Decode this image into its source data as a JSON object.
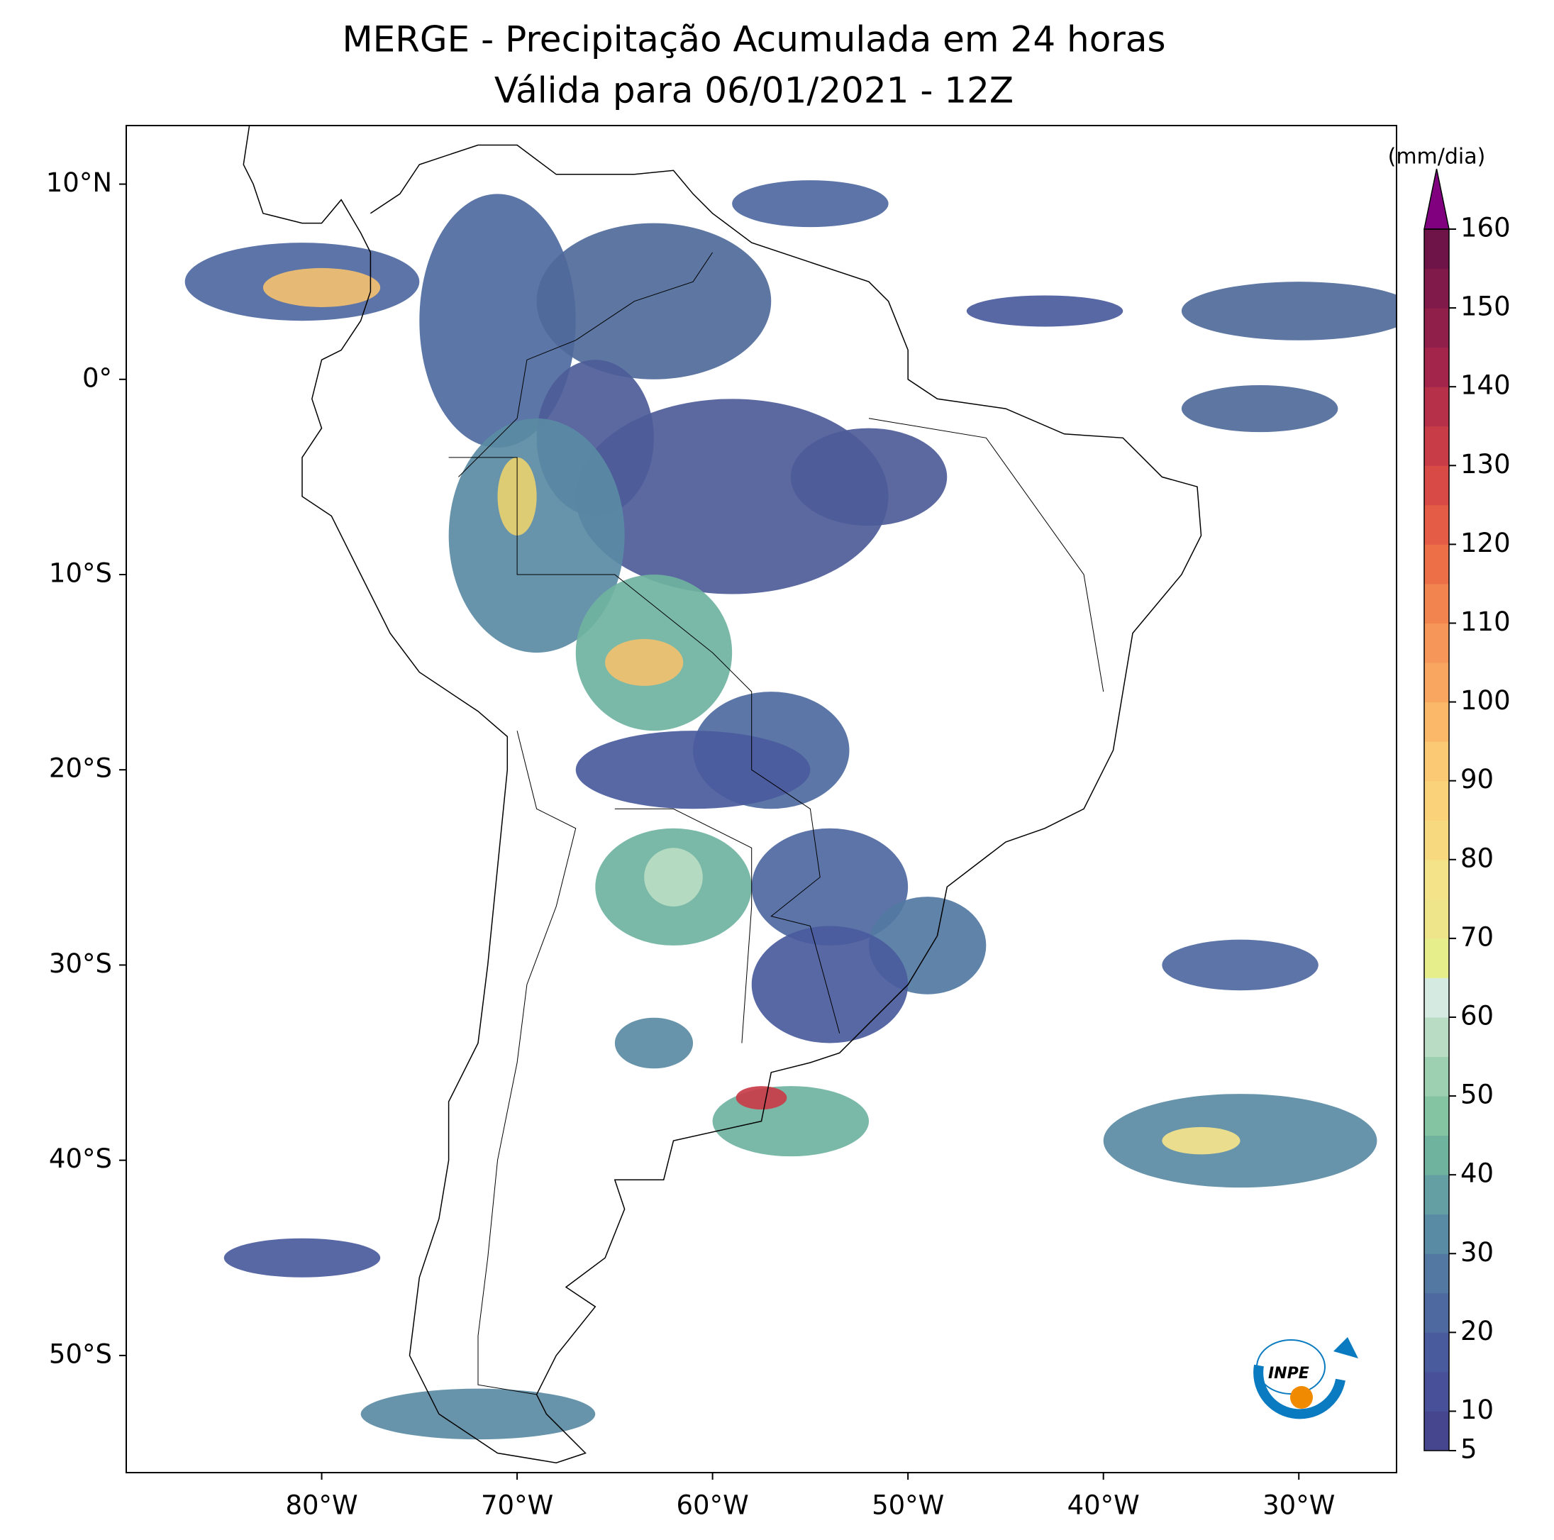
{
  "title": "MERGE - Precipitação Acumulada em 24 horas",
  "subtitle": "Válida para 06/01/2021 - 12Z",
  "map": {
    "xlim": [
      -90,
      -25
    ],
    "ylim": [
      -56,
      13
    ],
    "xticks": [
      {
        "value": -80,
        "label": "80°W"
      },
      {
        "value": -70,
        "label": "70°W"
      },
      {
        "value": -60,
        "label": "60°W"
      },
      {
        "value": -50,
        "label": "50°W"
      },
      {
        "value": -40,
        "label": "40°W"
      },
      {
        "value": -30,
        "label": "30°W"
      }
    ],
    "yticks": [
      {
        "value": 10,
        "label": "10°N"
      },
      {
        "value": 0,
        "label": "0°"
      },
      {
        "value": -10,
        "label": "10°S"
      },
      {
        "value": -20,
        "label": "20°S"
      },
      {
        "value": -30,
        "label": "30°S"
      },
      {
        "value": -40,
        "label": "40°S"
      },
      {
        "value": -50,
        "label": "50°S"
      }
    ]
  },
  "colorbar": {
    "label": "(mm/dia)",
    "levels": [
      5,
      10,
      15,
      20,
      25,
      30,
      35,
      40,
      45,
      50,
      55,
      60,
      65,
      70,
      75,
      80,
      85,
      90,
      95,
      100,
      105,
      110,
      115,
      120,
      125,
      130,
      135,
      140,
      145,
      150,
      155,
      160
    ],
    "colors": [
      "#46468f",
      "#48509a",
      "#4a5b9d",
      "#4e68a0",
      "#5378a2",
      "#5a8ba4",
      "#649fa4",
      "#6fb39f",
      "#84c4a3",
      "#9dd0b0",
      "#b8dcc4",
      "#d5eae0",
      "#e6ee8c",
      "#eee58a",
      "#f5e38a",
      "#f7d97f",
      "#fad27a",
      "#fbc873",
      "#fbb869",
      "#f9a760",
      "#f69658",
      "#f2844f",
      "#ec6f48",
      "#e45c45",
      "#d84a46",
      "#c83c48",
      "#b6304a",
      "#a3254b",
      "#90204a",
      "#7f1a4a",
      "#6e1448"
    ],
    "extend_color": "#800080",
    "ticks": [
      5,
      10,
      20,
      30,
      40,
      50,
      60,
      70,
      80,
      90,
      100,
      110,
      120,
      130,
      140,
      150,
      160
    ]
  },
  "logo": "INPE"
}
